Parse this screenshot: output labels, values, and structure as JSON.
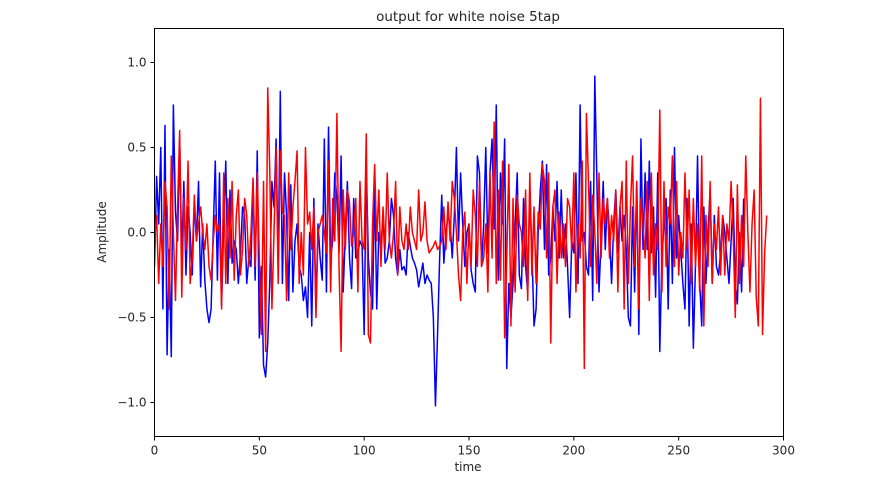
{
  "chart_data": {
    "type": "line",
    "title": "output for white noise 5tap",
    "xlabel": "time",
    "ylabel": "Amplitude",
    "xlim": [
      0,
      300
    ],
    "ylim": [
      -1.2,
      1.2
    ],
    "xticks": [
      0,
      50,
      100,
      150,
      200,
      250,
      300
    ],
    "xtick_labels": [
      "0",
      "50",
      "100",
      "150",
      "200",
      "250",
      "300"
    ],
    "yticks": [
      -1.0,
      -0.5,
      0.0,
      0.5,
      1.0
    ],
    "ytick_labels": [
      "−1.0",
      "−0.5",
      "0.0",
      "0.5",
      "1.0"
    ],
    "grid": false,
    "legend": "none",
    "series": [
      {
        "color": "#0000ff",
        "x_start": 0,
        "x_step": 1,
        "values": [
          -0.2,
          0.33,
          0.05,
          0.5,
          -0.45,
          0.63,
          -0.72,
          -0.1,
          -0.73,
          0.75,
          0.12,
          -0.05,
          0.55,
          -0.15,
          0.3,
          -0.25,
          0.15,
          0.0,
          -0.25,
          0.18,
          -0.05,
          0.3,
          -0.32,
          0.05,
          -0.28,
          -0.45,
          -0.53,
          -0.45,
          0.0,
          0.42,
          -0.28,
          0.35,
          -0.43,
          0.05,
          0.42,
          -0.3,
          0.25,
          -0.18,
          -0.05,
          -0.1,
          -0.3,
          -0.12,
          0.15,
          0.1,
          -0.3,
          -0.15,
          -0.2,
          0.3,
          -0.28,
          0.48,
          -0.62,
          -0.2,
          -0.78,
          -0.85,
          -0.65,
          -0.28,
          0.3,
          0.15,
          0.55,
          -0.2,
          0.83,
          -0.3,
          0.35,
          0.1,
          -0.4,
          0.28,
          -0.35,
          -0.05,
          0.05,
          -0.2,
          -0.25,
          -0.4,
          -0.32,
          -0.5,
          0.0,
          -0.55,
          0.2,
          -0.45,
          0.05,
          -0.15,
          -0.28,
          0.55,
          -0.35,
          0.62,
          -0.15,
          -0.05,
          0.35,
          0.2,
          -0.12,
          0.45,
          -0.35,
          0.0,
          0.3,
          -0.15,
          -0.33,
          0.2,
          -0.15,
          -0.12,
          -0.05,
          -0.08,
          -0.6,
          0.4,
          -0.15,
          -0.35,
          -0.45,
          0.3,
          -0.45,
          0.0,
          -0.08,
          0.1,
          -0.18,
          -0.15,
          -0.05,
          0.2,
          0.1,
          -0.15,
          -0.25,
          -0.1,
          -0.22,
          -0.2,
          -0.25,
          0.0,
          -0.08,
          -0.15,
          -0.18,
          -0.22,
          -0.32,
          -0.25,
          -0.18,
          -0.3,
          -0.25,
          -0.28,
          -0.3,
          -0.5,
          -1.02,
          -0.6,
          -0.15,
          0.22,
          -0.18,
          0.0,
          0.1,
          0.05,
          -0.15,
          0.1,
          0.5,
          -0.05,
          0.35,
          0.05,
          -0.2,
          0.0,
          0.05,
          -0.22,
          -0.3,
          -0.35,
          0.45,
          0.35,
          -0.2,
          0.05,
          0.5,
          -0.12,
          0.35,
          0.55,
          0.02,
          0.75,
          -0.28,
          0.35,
          0.05,
          0.55,
          -0.8,
          -0.3,
          -0.5,
          -0.3,
          0.05,
          0.35,
          -0.25,
          -0.33,
          0.2,
          -0.2,
          -0.35,
          0.25,
          -0.1,
          -0.55,
          -0.45,
          0.0,
          0.25,
          0.42,
          -0.1,
          0.4,
          -0.25,
          -0.15,
          0.15,
          -0.05,
          0.3,
          -0.15,
          0.25,
          -0.15,
          0.05,
          -0.2,
          -0.5,
          -0.05,
          -0.12,
          0.35,
          -0.3,
          0.75,
          -0.05,
          0.0,
          -0.2,
          -0.25,
          0.3,
          -0.4,
          0.92,
          0.3,
          -0.35,
          -0.05,
          0.3,
          -0.1,
          0.2,
          0.0,
          -0.3,
          0.05,
          0.25,
          -0.12,
          0.15,
          -0.05,
          0.1,
          -0.1,
          -0.5,
          -0.55,
          0.15,
          -0.35,
          0.3,
          -0.6,
          0.55,
          -0.1,
          0.35,
          -0.1,
          0.42,
          -0.12,
          0.15,
          -0.38,
          0.35,
          -0.7,
          -0.15,
          0.05,
          0.2,
          -0.45,
          0.25,
          -0.3,
          0.5,
          -0.15,
          0.1,
          -0.1,
          -0.3,
          -0.45,
          0.2,
          -0.55,
          0.05,
          -0.68,
          -0.2,
          0.45,
          -0.28,
          -0.55,
          0.15,
          -0.3,
          0.0,
          0.25,
          -0.3,
          0.1,
          -0.2,
          -0.25,
          -0.12,
          0.1,
          0.0,
          -0.15,
          -0.3,
          -0.05,
          0.2,
          -0.3,
          -0.42,
          0.0,
          -0.35,
          0.2
        ]
      },
      {
        "color": "#ff0000",
        "x_start": 0,
        "x_step": 1,
        "values": [
          -0.05,
          0.1,
          -0.3,
          0.05,
          -0.2,
          0.3,
          0.15,
          -0.45,
          0.45,
          0.0,
          -0.4,
          0.15,
          0.6,
          -0.38,
          0.2,
          -0.1,
          0.42,
          -0.3,
          -0.15,
          0.22,
          -0.05,
          0.05,
          0.15,
          0.0,
          -0.1,
          0.05,
          -0.2,
          -0.28,
          -0.05,
          0.1,
          0.0,
          0.05,
          -0.45,
          0.35,
          -0.3,
          0.2,
          -0.15,
          0.3,
          -0.28,
          0.1,
          0.25,
          -0.25,
          -0.1,
          0.2,
          0.1,
          -0.2,
          0.0,
          0.32,
          -0.2,
          0.35,
          -0.15,
          -0.6,
          0.3,
          -0.7,
          0.85,
          0.35,
          -0.45,
          0.0,
          0.5,
          -0.3,
          0.48,
          0.12,
          0.1,
          -0.4,
          0.35,
          -0.1,
          0.15,
          0.3,
          0.48,
          -0.3,
          0.0,
          -0.25,
          0.5,
          0.05,
          0.12,
          -0.1,
          0.15,
          -0.5,
          0.0,
          0.05,
          0.1,
          0.0,
          -0.12,
          0.42,
          -0.35,
          0.2,
          -0.05,
          0.7,
          -0.2,
          -0.7,
          0.25,
          -0.1,
          0.25,
          0.18,
          -0.08,
          0.0,
          0.2,
          -0.35,
          0.3,
          -0.05,
          -0.1,
          0.58,
          -0.6,
          -0.65,
          0.05,
          0.4,
          -0.05,
          0.25,
          -0.2,
          0.15,
          -0.1,
          0.35,
          -0.05,
          -0.15,
          0.0,
          0.3,
          -0.25,
          0.15,
          -0.05,
          -0.1,
          0.05,
          -0.1,
          0.15,
          0.0,
          -0.05,
          -0.1,
          0.25,
          -0.05,
          0.0,
          0.18,
          -0.05,
          -0.12,
          -0.1,
          -0.08,
          -0.05,
          -0.1,
          -0.08,
          -0.05,
          0.15,
          -0.1,
          0.18,
          -0.05,
          0.3,
          0.2,
          0.0,
          -0.25,
          -0.4,
          0.0,
          0.12,
          -0.3,
          0.05,
          -0.2,
          0.25,
          0.1,
          -0.2,
          0.3,
          -0.2,
          -0.15,
          0.05,
          -0.35,
          0.35,
          -0.15,
          0.65,
          -0.3,
          0.25,
          -0.28,
          0.42,
          -0.62,
          -0.15,
          0.4,
          -0.55,
          0.2,
          -0.35,
          0.22,
          0.05,
          0.0,
          -0.2,
          0.25,
          -0.4,
          0.35,
          -0.25,
          0.15,
          -0.3,
          0.12,
          0.02,
          0.4,
          0.3,
          -0.15,
          0.35,
          -0.65,
          0.15,
          0.25,
          -0.3,
          0.12,
          -0.15,
          0.05,
          -0.2,
          0.2,
          0.15,
          -0.1,
          0.35,
          -0.35,
          0.05,
          -0.15,
          0.42,
          -0.8,
          0.7,
          0.3,
          -0.2,
          0.22,
          0.0,
          -0.3,
          0.35,
          -0.15,
          0.2,
          0.05,
          0.2,
          -0.15,
          0.1,
          -0.05,
          0.25,
          -0.35,
          0.15,
          0.3,
          -0.45,
          0.42,
          -0.3,
          0.15,
          0.45,
          -0.2,
          0.3,
          -0.45,
          0.2,
          0.05,
          -0.15,
          0.3,
          -0.4,
          0.35,
          -0.25,
          0.05,
          -0.1,
          0.72,
          -0.35,
          0.3,
          -0.2,
          0.15,
          0.05,
          0.45,
          -0.2,
          0.3,
          -0.25,
          0.0,
          -0.15,
          0.35,
          -0.1,
          0.25,
          -0.3,
          0.2,
          -0.2,
          0.05,
          -0.35,
          0.45,
          -0.55,
          0.1,
          -0.2,
          0.3,
          -0.3,
          0.05,
          -0.1,
          0.15,
          -0.25,
          0.1,
          -0.25,
          0.05,
          -0.05,
          0.3,
          0.0,
          -0.5,
          0.28,
          -0.3,
          0.1,
          -0.2,
          0.45,
          0.0,
          -0.35,
          0.05,
          0.25,
          -0.38,
          -0.55,
          0.79,
          -0.6,
          -0.12,
          0.1
        ]
      }
    ]
  }
}
